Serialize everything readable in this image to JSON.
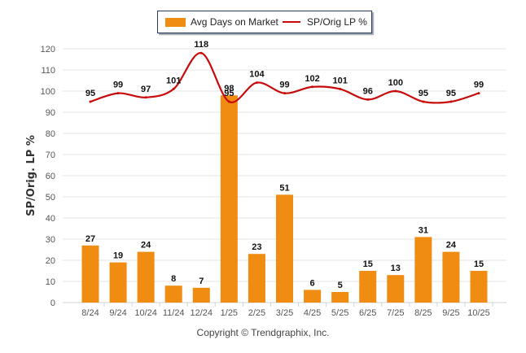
{
  "chart_data": {
    "type": "bar",
    "title": "",
    "xlabel": "",
    "ylabel": "SP/Orig. LP %",
    "ylim": [
      0,
      120
    ],
    "yticks": [
      0,
      10,
      20,
      30,
      40,
      50,
      60,
      70,
      80,
      90,
      100,
      110,
      120
    ],
    "grid": true,
    "legend_position": "top-center",
    "categories": [
      "8/24",
      "9/24",
      "10/24",
      "11/24",
      "12/24",
      "1/25",
      "2/25",
      "3/25",
      "4/25",
      "5/25",
      "6/25",
      "7/25",
      "8/25",
      "9/25",
      "10/25"
    ],
    "series": [
      {
        "name": "Avg Days on Market",
        "type": "bar",
        "color": "#f08c12",
        "values": [
          27,
          19,
          24,
          8,
          7,
          98,
          23,
          51,
          6,
          5,
          15,
          13,
          31,
          24,
          15
        ]
      },
      {
        "name": "SP/Orig LP %",
        "type": "line",
        "color": "#c80a0a",
        "values": [
          95,
          99,
          97,
          101,
          118,
          95,
          104,
          99,
          102,
          101,
          96,
          100,
          95,
          95,
          99
        ]
      }
    ]
  },
  "legend": {
    "items": [
      {
        "label": "Avg Days on Market"
      },
      {
        "label": "SP/Orig LP %"
      }
    ]
  },
  "footer": {
    "copyright": "Copyright © Trendgraphix, Inc."
  }
}
